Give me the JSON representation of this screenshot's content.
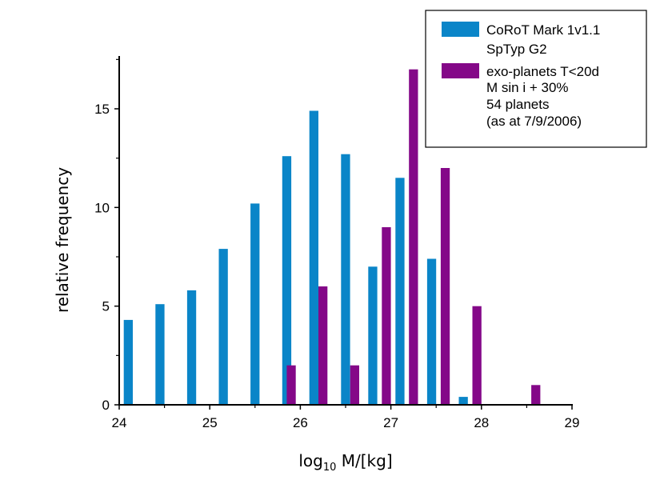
{
  "chart_data": {
    "type": "bar",
    "xlabel_main": "log",
    "xlabel_sub": "10",
    "xlabel_rest": " M/[kg]",
    "ylabel": "relative frequency",
    "xlim": [
      24,
      29
    ],
    "ylim": [
      0,
      18
    ],
    "xticks": [
      24,
      25,
      26,
      27,
      28,
      29
    ],
    "yticks": [
      0,
      5,
      10,
      15
    ],
    "bin_width": 0.1,
    "series": [
      {
        "name": "CoRoT Mark 1v1.1 SpTyp G2",
        "color": "#0a85c8",
        "x": [
          24.1,
          24.45,
          24.8,
          25.15,
          25.5,
          25.85,
          26.15,
          26.5,
          26.8,
          27.1,
          27.45,
          27.8
        ],
        "values": [
          4.3,
          5.1,
          5.8,
          7.9,
          10.2,
          12.6,
          14.9,
          12.7,
          7.0,
          11.5,
          7.4,
          0.4
        ]
      },
      {
        "name": "exo-planets T<20d M sin i + 30% 54 planets (as at 7/9/2006)",
        "color": "#840888",
        "x": [
          25.9,
          26.25,
          26.6,
          26.95,
          27.25,
          27.6,
          27.95,
          28.6
        ],
        "values": [
          2,
          6,
          2,
          9,
          17,
          12,
          5,
          1
        ]
      }
    ],
    "legend": {
      "position": "top-right",
      "entries": [
        {
          "color": "#0a85c8",
          "lines": [
            "CoRoT Mark 1v1.1",
            "SpTyp G2"
          ]
        },
        {
          "color": "#840888",
          "lines": [
            "exo-planets T<20d",
            "M sin i + 30%",
            "54 planets",
            "(as at 7/9/2006)"
          ]
        }
      ]
    }
  }
}
